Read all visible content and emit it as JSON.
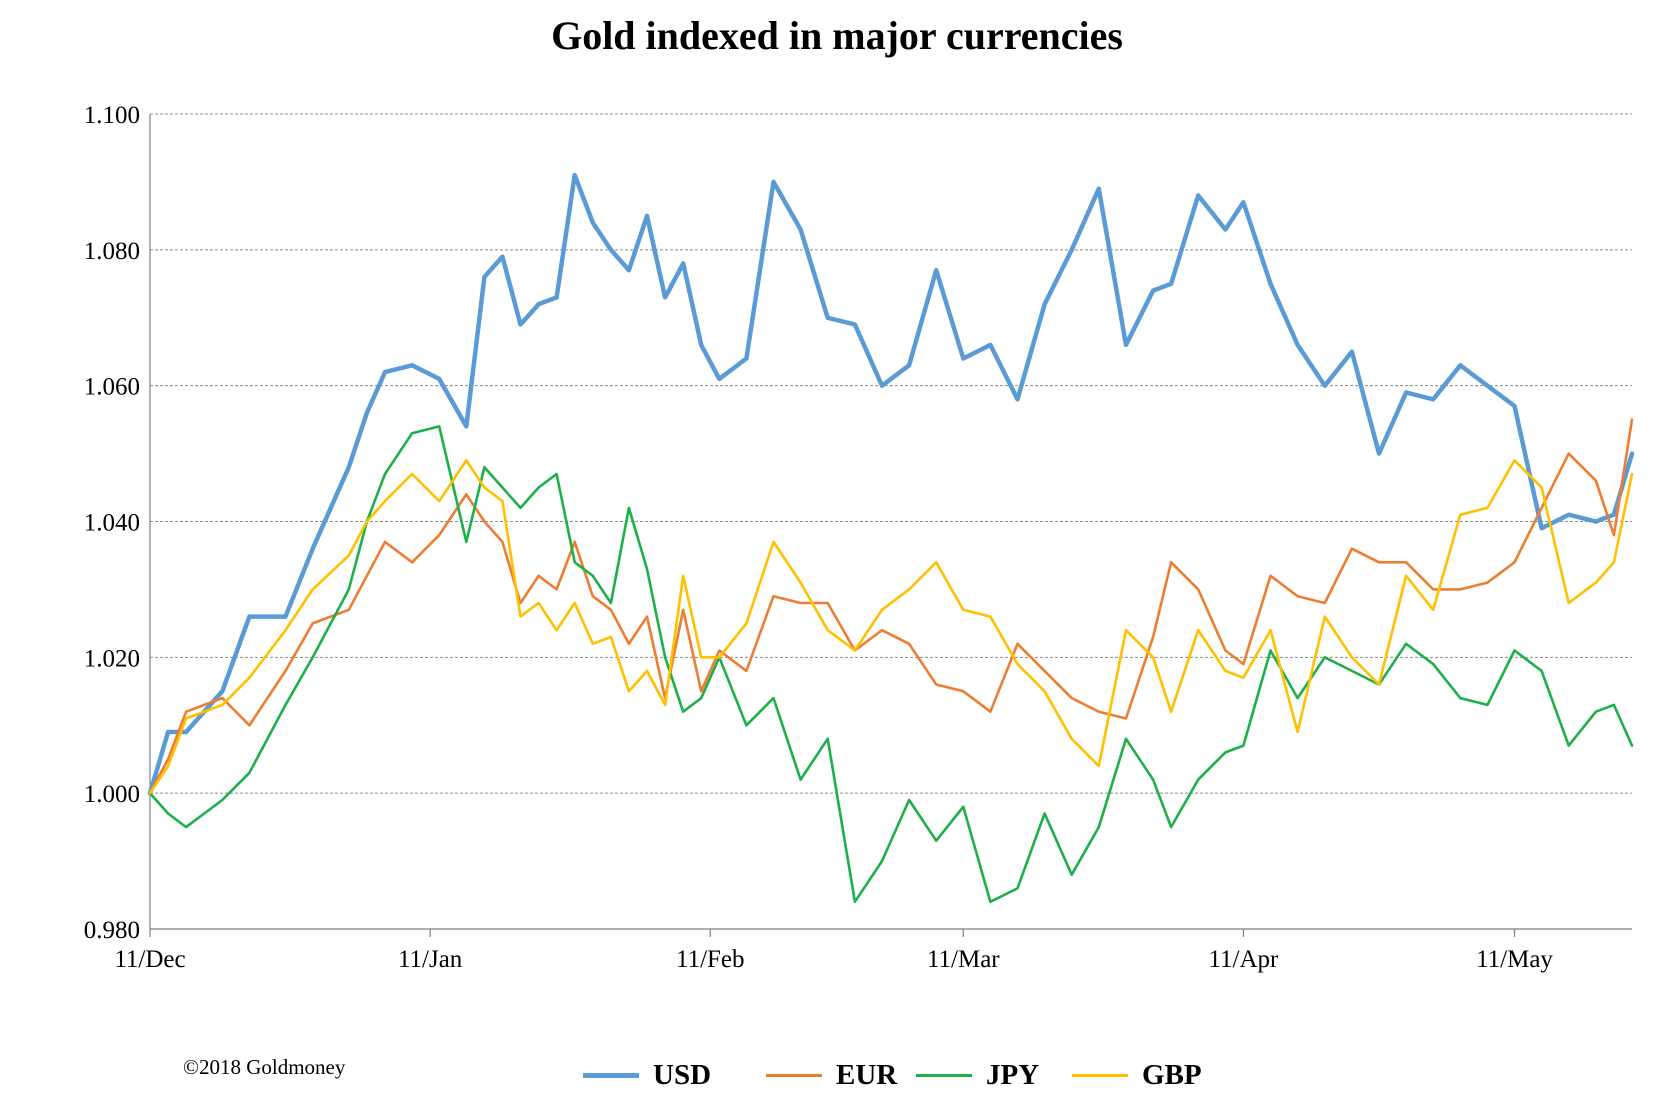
{
  "chart_data": {
    "type": "line",
    "title": "Gold indexed in major currencies",
    "xlabel": "",
    "ylabel": "",
    "ylim": [
      0.98,
      1.1
    ],
    "y_ticks": [
      "0.980",
      "1.000",
      "1.020",
      "1.040",
      "1.060",
      "1.080",
      "1.100"
    ],
    "x_ticks": [
      "11/Dec",
      "11/Jan",
      "11/Feb",
      "11/Mar",
      "11/Apr",
      "11/May"
    ],
    "x_start": "2017-12-11",
    "x_end": "2018-05-24",
    "grid": true,
    "legend_position": "bottom",
    "series": [
      {
        "name": "USD",
        "color": "#5B9BD5",
        "x": [
          "2017-12-11",
          "2017-12-13",
          "2017-12-15",
          "2017-12-19",
          "2017-12-22",
          "2017-12-26",
          "2017-12-29",
          "2018-01-02",
          "2018-01-04",
          "2018-01-06",
          "2018-01-09",
          "2018-01-12",
          "2018-01-15",
          "2018-01-17",
          "2018-01-19",
          "2018-01-21",
          "2018-01-23",
          "2018-01-25",
          "2018-01-27",
          "2018-01-29",
          "2018-01-31",
          "2018-02-02",
          "2018-02-04",
          "2018-02-06",
          "2018-02-08",
          "2018-02-10",
          "2018-02-12",
          "2018-02-15",
          "2018-02-18",
          "2018-02-21",
          "2018-02-24",
          "2018-02-27",
          "2018-03-02",
          "2018-03-05",
          "2018-03-08",
          "2018-03-11",
          "2018-03-14",
          "2018-03-17",
          "2018-03-20",
          "2018-03-23",
          "2018-03-26",
          "2018-03-29",
          "2018-04-01",
          "2018-04-03",
          "2018-04-06",
          "2018-04-09",
          "2018-04-11",
          "2018-04-14",
          "2018-04-17",
          "2018-04-20",
          "2018-04-23",
          "2018-04-26",
          "2018-04-29",
          "2018-05-02",
          "2018-05-05",
          "2018-05-08",
          "2018-05-11",
          "2018-05-14",
          "2018-05-17",
          "2018-05-20",
          "2018-05-22",
          "2018-05-24"
        ],
        "values": [
          1.0,
          1.009,
          1.009,
          1.015,
          1.026,
          1.026,
          1.036,
          1.048,
          1.056,
          1.062,
          1.063,
          1.061,
          1.054,
          1.076,
          1.079,
          1.069,
          1.072,
          1.073,
          1.091,
          1.084,
          1.08,
          1.077,
          1.085,
          1.073,
          1.078,
          1.066,
          1.061,
          1.064,
          1.09,
          1.083,
          1.07,
          1.069,
          1.06,
          1.063,
          1.077,
          1.064,
          1.066,
          1.058,
          1.072,
          1.08,
          1.089,
          1.066,
          1.074,
          1.075,
          1.088,
          1.083,
          1.087,
          1.075,
          1.066,
          1.06,
          1.065,
          1.05,
          1.059,
          1.058,
          1.063,
          1.06,
          1.057,
          1.039,
          1.041,
          1.04,
          1.041,
          1.05
        ]
      },
      {
        "name": "EUR",
        "color": "#ED7D31",
        "x": [
          "2017-12-11",
          "2017-12-13",
          "2017-12-15",
          "2017-12-19",
          "2017-12-22",
          "2017-12-26",
          "2017-12-29",
          "2018-01-02",
          "2018-01-04",
          "2018-01-06",
          "2018-01-09",
          "2018-01-12",
          "2018-01-15",
          "2018-01-17",
          "2018-01-19",
          "2018-01-21",
          "2018-01-23",
          "2018-01-25",
          "2018-01-27",
          "2018-01-29",
          "2018-01-31",
          "2018-02-02",
          "2018-02-04",
          "2018-02-06",
          "2018-02-08",
          "2018-02-10",
          "2018-02-12",
          "2018-02-15",
          "2018-02-18",
          "2018-02-21",
          "2018-02-24",
          "2018-02-27",
          "2018-03-02",
          "2018-03-05",
          "2018-03-08",
          "2018-03-11",
          "2018-03-14",
          "2018-03-17",
          "2018-03-20",
          "2018-03-23",
          "2018-03-26",
          "2018-03-29",
          "2018-04-01",
          "2018-04-03",
          "2018-04-06",
          "2018-04-09",
          "2018-04-11",
          "2018-04-14",
          "2018-04-17",
          "2018-04-20",
          "2018-04-23",
          "2018-04-26",
          "2018-04-29",
          "2018-05-02",
          "2018-05-05",
          "2018-05-08",
          "2018-05-11",
          "2018-05-14",
          "2018-05-17",
          "2018-05-20",
          "2018-05-22",
          "2018-05-24"
        ],
        "values": [
          1.0,
          1.005,
          1.012,
          1.014,
          1.01,
          1.018,
          1.025,
          1.027,
          1.032,
          1.037,
          1.034,
          1.038,
          1.044,
          1.04,
          1.037,
          1.028,
          1.032,
          1.03,
          1.037,
          1.029,
          1.027,
          1.022,
          1.026,
          1.014,
          1.027,
          1.015,
          1.021,
          1.018,
          1.029,
          1.028,
          1.028,
          1.021,
          1.024,
          1.022,
          1.016,
          1.015,
          1.012,
          1.022,
          1.018,
          1.014,
          1.012,
          1.011,
          1.023,
          1.034,
          1.03,
          1.021,
          1.019,
          1.032,
          1.029,
          1.028,
          1.036,
          1.034,
          1.034,
          1.03,
          1.03,
          1.031,
          1.034,
          1.042,
          1.05,
          1.046,
          1.038,
          1.055
        ]
      },
      {
        "name": "JPY",
        "color": "#1DB04A",
        "x": [
          "2017-12-11",
          "2017-12-13",
          "2017-12-15",
          "2017-12-19",
          "2017-12-22",
          "2017-12-26",
          "2017-12-29",
          "2018-01-02",
          "2018-01-04",
          "2018-01-06",
          "2018-01-09",
          "2018-01-12",
          "2018-01-15",
          "2018-01-17",
          "2018-01-19",
          "2018-01-21",
          "2018-01-23",
          "2018-01-25",
          "2018-01-27",
          "2018-01-29",
          "2018-01-31",
          "2018-02-02",
          "2018-02-04",
          "2018-02-06",
          "2018-02-08",
          "2018-02-10",
          "2018-02-12",
          "2018-02-15",
          "2018-02-18",
          "2018-02-21",
          "2018-02-24",
          "2018-02-27",
          "2018-03-02",
          "2018-03-05",
          "2018-03-08",
          "2018-03-11",
          "2018-03-14",
          "2018-03-17",
          "2018-03-20",
          "2018-03-23",
          "2018-03-26",
          "2018-03-29",
          "2018-04-01",
          "2018-04-03",
          "2018-04-06",
          "2018-04-09",
          "2018-04-11",
          "2018-04-14",
          "2018-04-17",
          "2018-04-20",
          "2018-04-23",
          "2018-04-26",
          "2018-04-29",
          "2018-05-02",
          "2018-05-05",
          "2018-05-08",
          "2018-05-11",
          "2018-05-14",
          "2018-05-17",
          "2018-05-20",
          "2018-05-22",
          "2018-05-24"
        ],
        "values": [
          1.0,
          0.997,
          0.995,
          0.999,
          1.003,
          1.013,
          1.02,
          1.03,
          1.04,
          1.047,
          1.053,
          1.054,
          1.037,
          1.048,
          1.045,
          1.042,
          1.045,
          1.047,
          1.034,
          1.032,
          1.028,
          1.042,
          1.033,
          1.02,
          1.012,
          1.014,
          1.02,
          1.01,
          1.014,
          1.002,
          1.008,
          0.984,
          0.99,
          0.999,
          0.993,
          0.998,
          0.984,
          0.986,
          0.997,
          0.988,
          0.995,
          1.008,
          1.002,
          0.995,
          1.002,
          1.006,
          1.007,
          1.021,
          1.014,
          1.02,
          1.018,
          1.016,
          1.022,
          1.019,
          1.014,
          1.013,
          1.021,
          1.018,
          1.007,
          1.012,
          1.013,
          1.007
        ]
      },
      {
        "name": "GBP",
        "color": "#FFC000",
        "x": [
          "2017-12-11",
          "2017-12-13",
          "2017-12-15",
          "2017-12-19",
          "2017-12-22",
          "2017-12-26",
          "2017-12-29",
          "2018-01-02",
          "2018-01-04",
          "2018-01-06",
          "2018-01-09",
          "2018-01-12",
          "2018-01-15",
          "2018-01-17",
          "2018-01-19",
          "2018-01-21",
          "2018-01-23",
          "2018-01-25",
          "2018-01-27",
          "2018-01-29",
          "2018-01-31",
          "2018-02-02",
          "2018-02-04",
          "2018-02-06",
          "2018-02-08",
          "2018-02-10",
          "2018-02-12",
          "2018-02-15",
          "2018-02-18",
          "2018-02-21",
          "2018-02-24",
          "2018-02-27",
          "2018-03-02",
          "2018-03-05",
          "2018-03-08",
          "2018-03-11",
          "2018-03-14",
          "2018-03-17",
          "2018-03-20",
          "2018-03-23",
          "2018-03-26",
          "2018-03-29",
          "2018-04-01",
          "2018-04-03",
          "2018-04-06",
          "2018-04-09",
          "2018-04-11",
          "2018-04-14",
          "2018-04-17",
          "2018-04-20",
          "2018-04-23",
          "2018-04-26",
          "2018-04-29",
          "2018-05-02",
          "2018-05-05",
          "2018-05-08",
          "2018-05-11",
          "2018-05-14",
          "2018-05-17",
          "2018-05-20",
          "2018-05-22",
          "2018-05-24"
        ],
        "values": [
          1.0,
          1.004,
          1.011,
          1.013,
          1.017,
          1.024,
          1.03,
          1.035,
          1.04,
          1.043,
          1.047,
          1.043,
          1.049,
          1.045,
          1.043,
          1.026,
          1.028,
          1.024,
          1.028,
          1.022,
          1.023,
          1.015,
          1.018,
          1.013,
          1.032,
          1.02,
          1.02,
          1.025,
          1.037,
          1.031,
          1.024,
          1.021,
          1.027,
          1.03,
          1.034,
          1.027,
          1.026,
          1.019,
          1.015,
          1.008,
          1.004,
          1.024,
          1.02,
          1.012,
          1.024,
          1.018,
          1.017,
          1.024,
          1.009,
          1.026,
          1.02,
          1.016,
          1.032,
          1.027,
          1.041,
          1.042,
          1.049,
          1.045,
          1.028,
          1.031,
          1.034,
          1.047
        ]
      }
    ]
  },
  "footer": {
    "copyright": "©2018 Goldmoney"
  }
}
